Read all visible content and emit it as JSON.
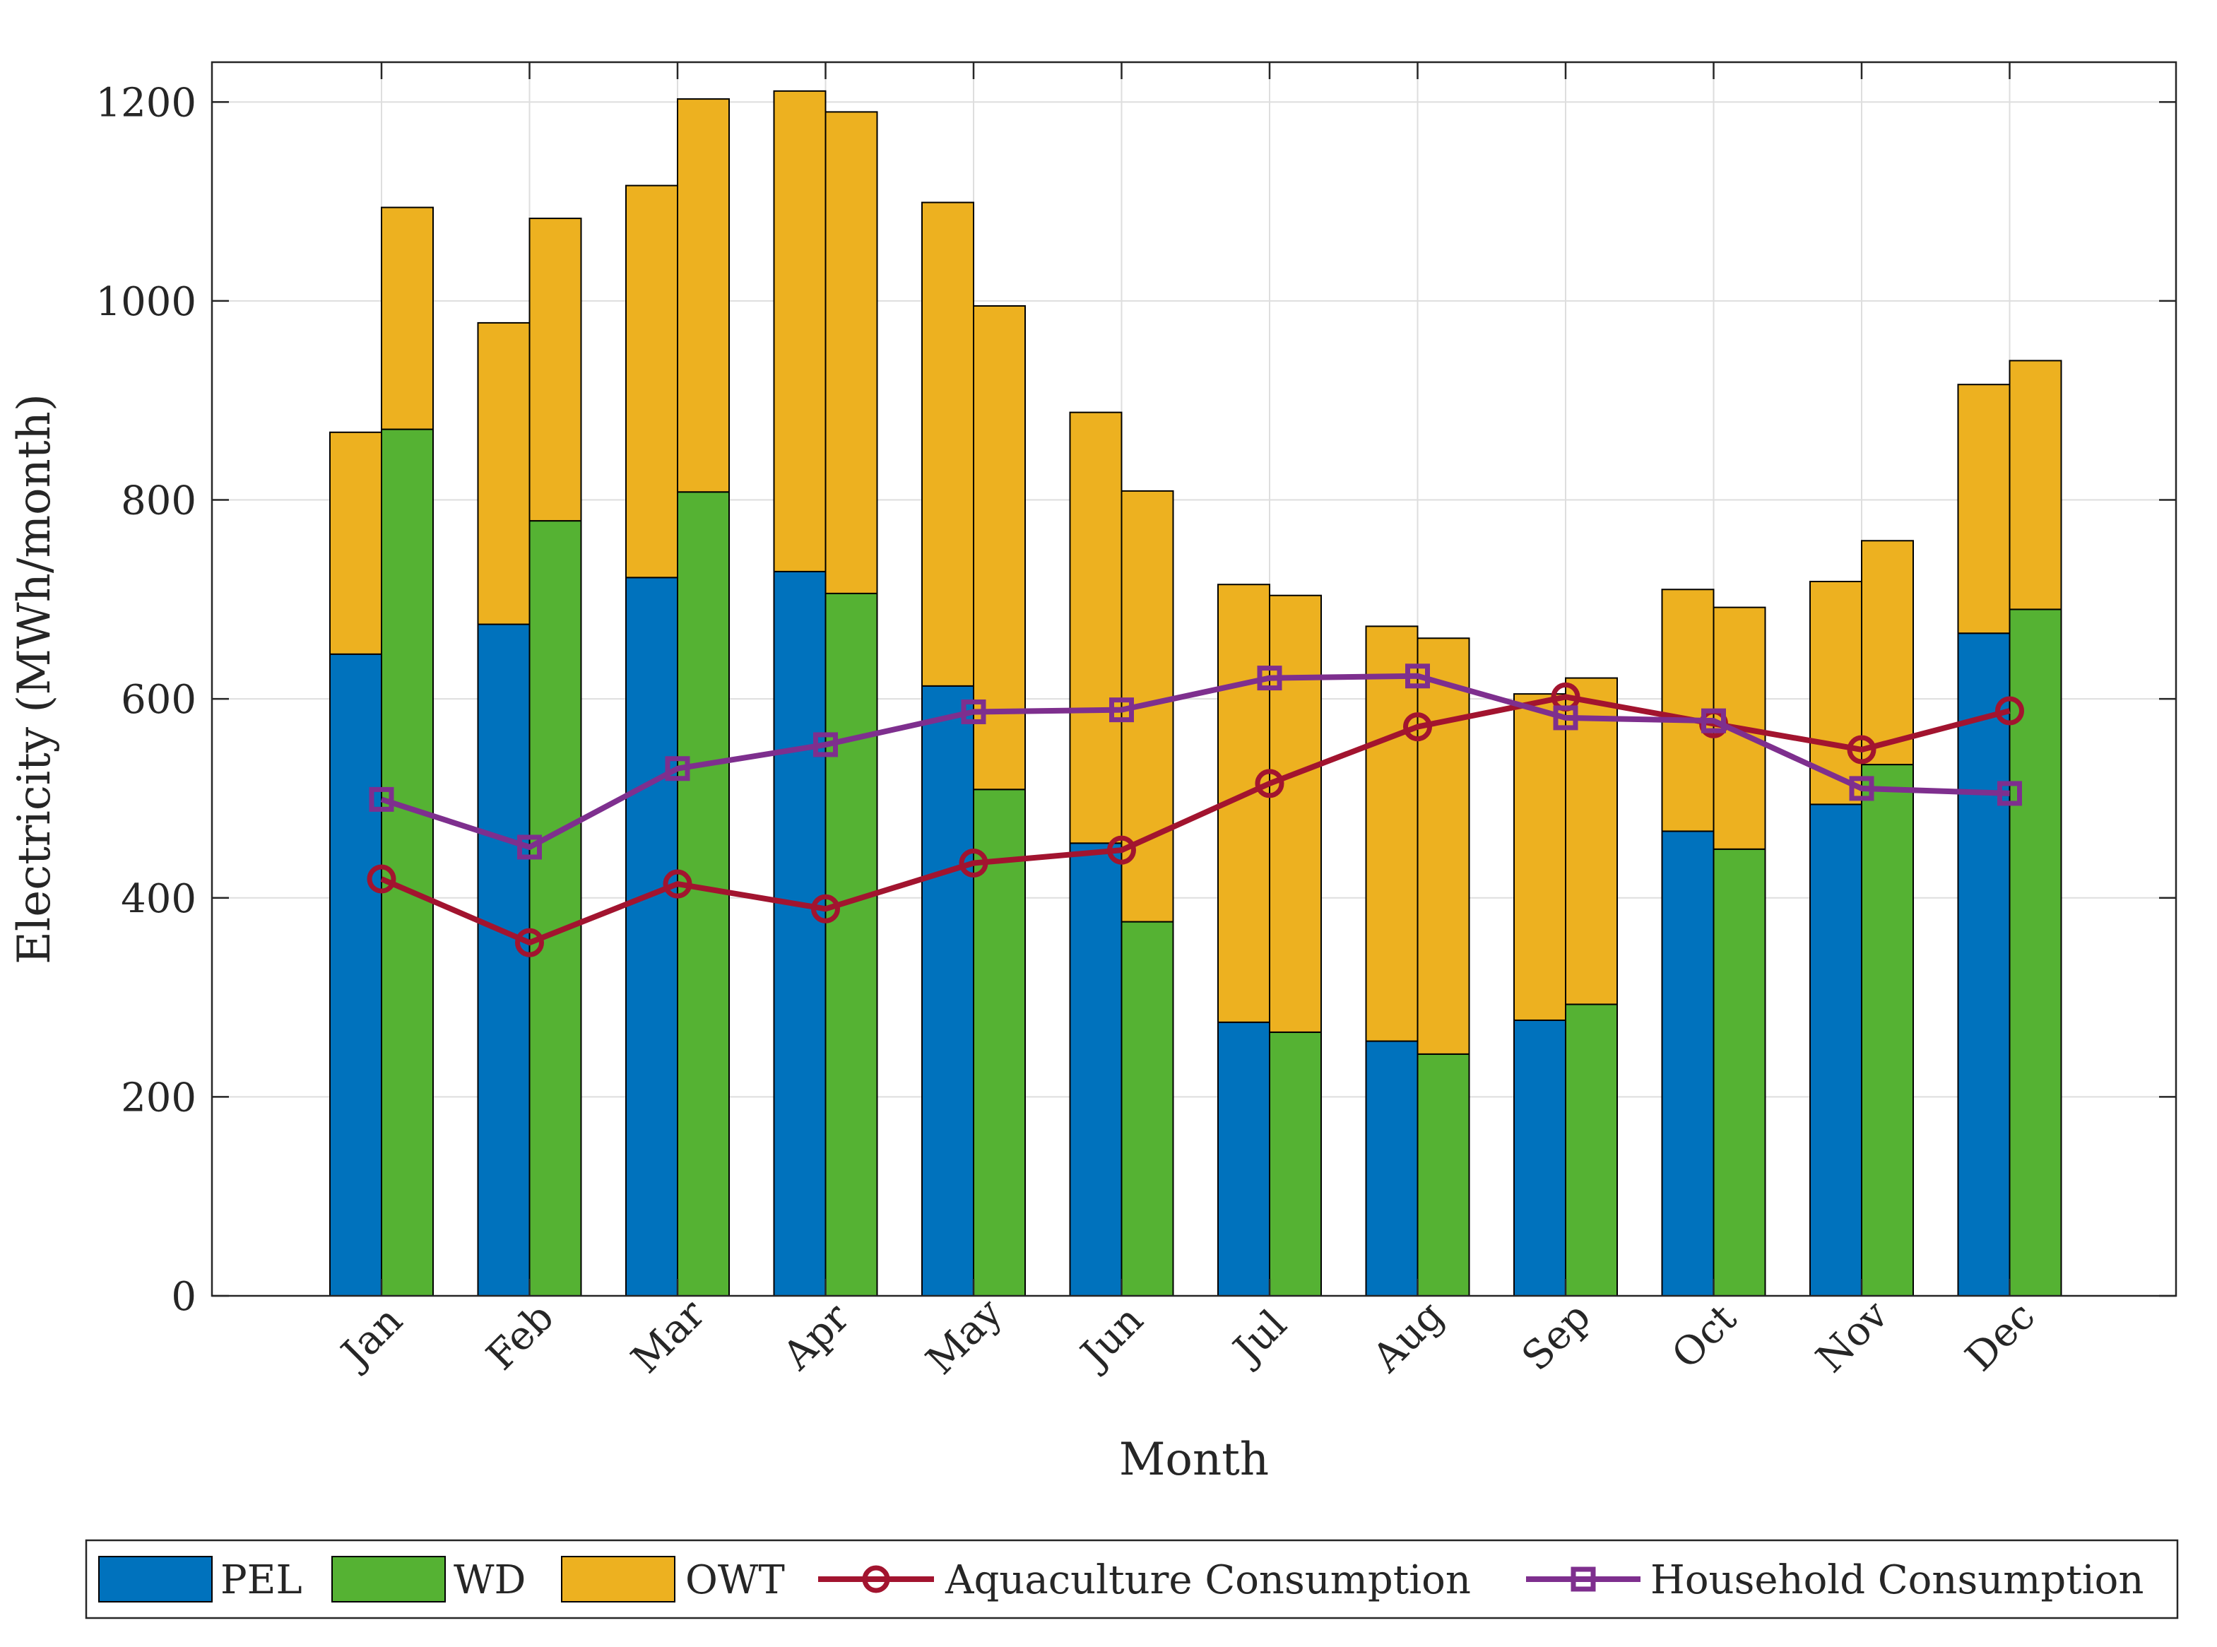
{
  "chart_data": {
    "type": "bar",
    "title": "",
    "xlabel": "Month",
    "ylabel": "Electricity (MWh/month)",
    "ylim": [
      0,
      1240
    ],
    "yticks": [
      0,
      200,
      400,
      600,
      800,
      1000,
      1200
    ],
    "grid": true,
    "legend_position": "bottom",
    "categories": [
      "Jan",
      "Feb",
      "Mar",
      "Apr",
      "May",
      "Jun",
      "Jul",
      "Aug",
      "Sep",
      "Oct",
      "Nov",
      "Dec"
    ],
    "stacks": [
      {
        "name": "PEL stack",
        "segments": [
          {
            "name": "PEL",
            "values": [
              645,
              675,
              722,
              728,
              613,
              455,
              275,
              256,
              277,
              467,
              494,
              666
            ]
          },
          {
            "name": "OWT",
            "values": [
              223,
              303,
              394,
              483,
              486,
              433,
              440,
              417,
              328,
              243,
              224,
              250
            ]
          }
        ]
      },
      {
        "name": "WD stack",
        "segments": [
          {
            "name": "WD",
            "values": [
              871,
              779,
              808,
              706,
              509,
              376,
              265,
              243,
              293,
              449,
              534,
              690
            ]
          },
          {
            "name": "OWT",
            "values": [
              223,
              304,
              395,
              484,
              486,
              433,
              439,
              418,
              328,
              243,
              225,
              250
            ]
          }
        ]
      }
    ],
    "lines": [
      {
        "name": "Aquaculture Consumption",
        "marker": "circle",
        "values": [
          419,
          355,
          414,
          389,
          435,
          448,
          515,
          572,
          602,
          575,
          549,
          588
        ]
      },
      {
        "name": "Household Consumption",
        "marker": "square",
        "values": [
          499,
          451,
          530,
          554,
          587,
          589,
          621,
          623,
          581,
          578,
          510,
          505
        ]
      }
    ],
    "legend": [
      "PEL",
      "WD",
      "OWT",
      "Aquaculture Consumption",
      "Household Consumption"
    ]
  },
  "colors": {
    "PEL": "#0072bd",
    "WD": "#55b233",
    "OWT": "#edb120",
    "Aquaculture Consumption": "#a2142f",
    "Household Consumption": "#7e2f8e"
  }
}
